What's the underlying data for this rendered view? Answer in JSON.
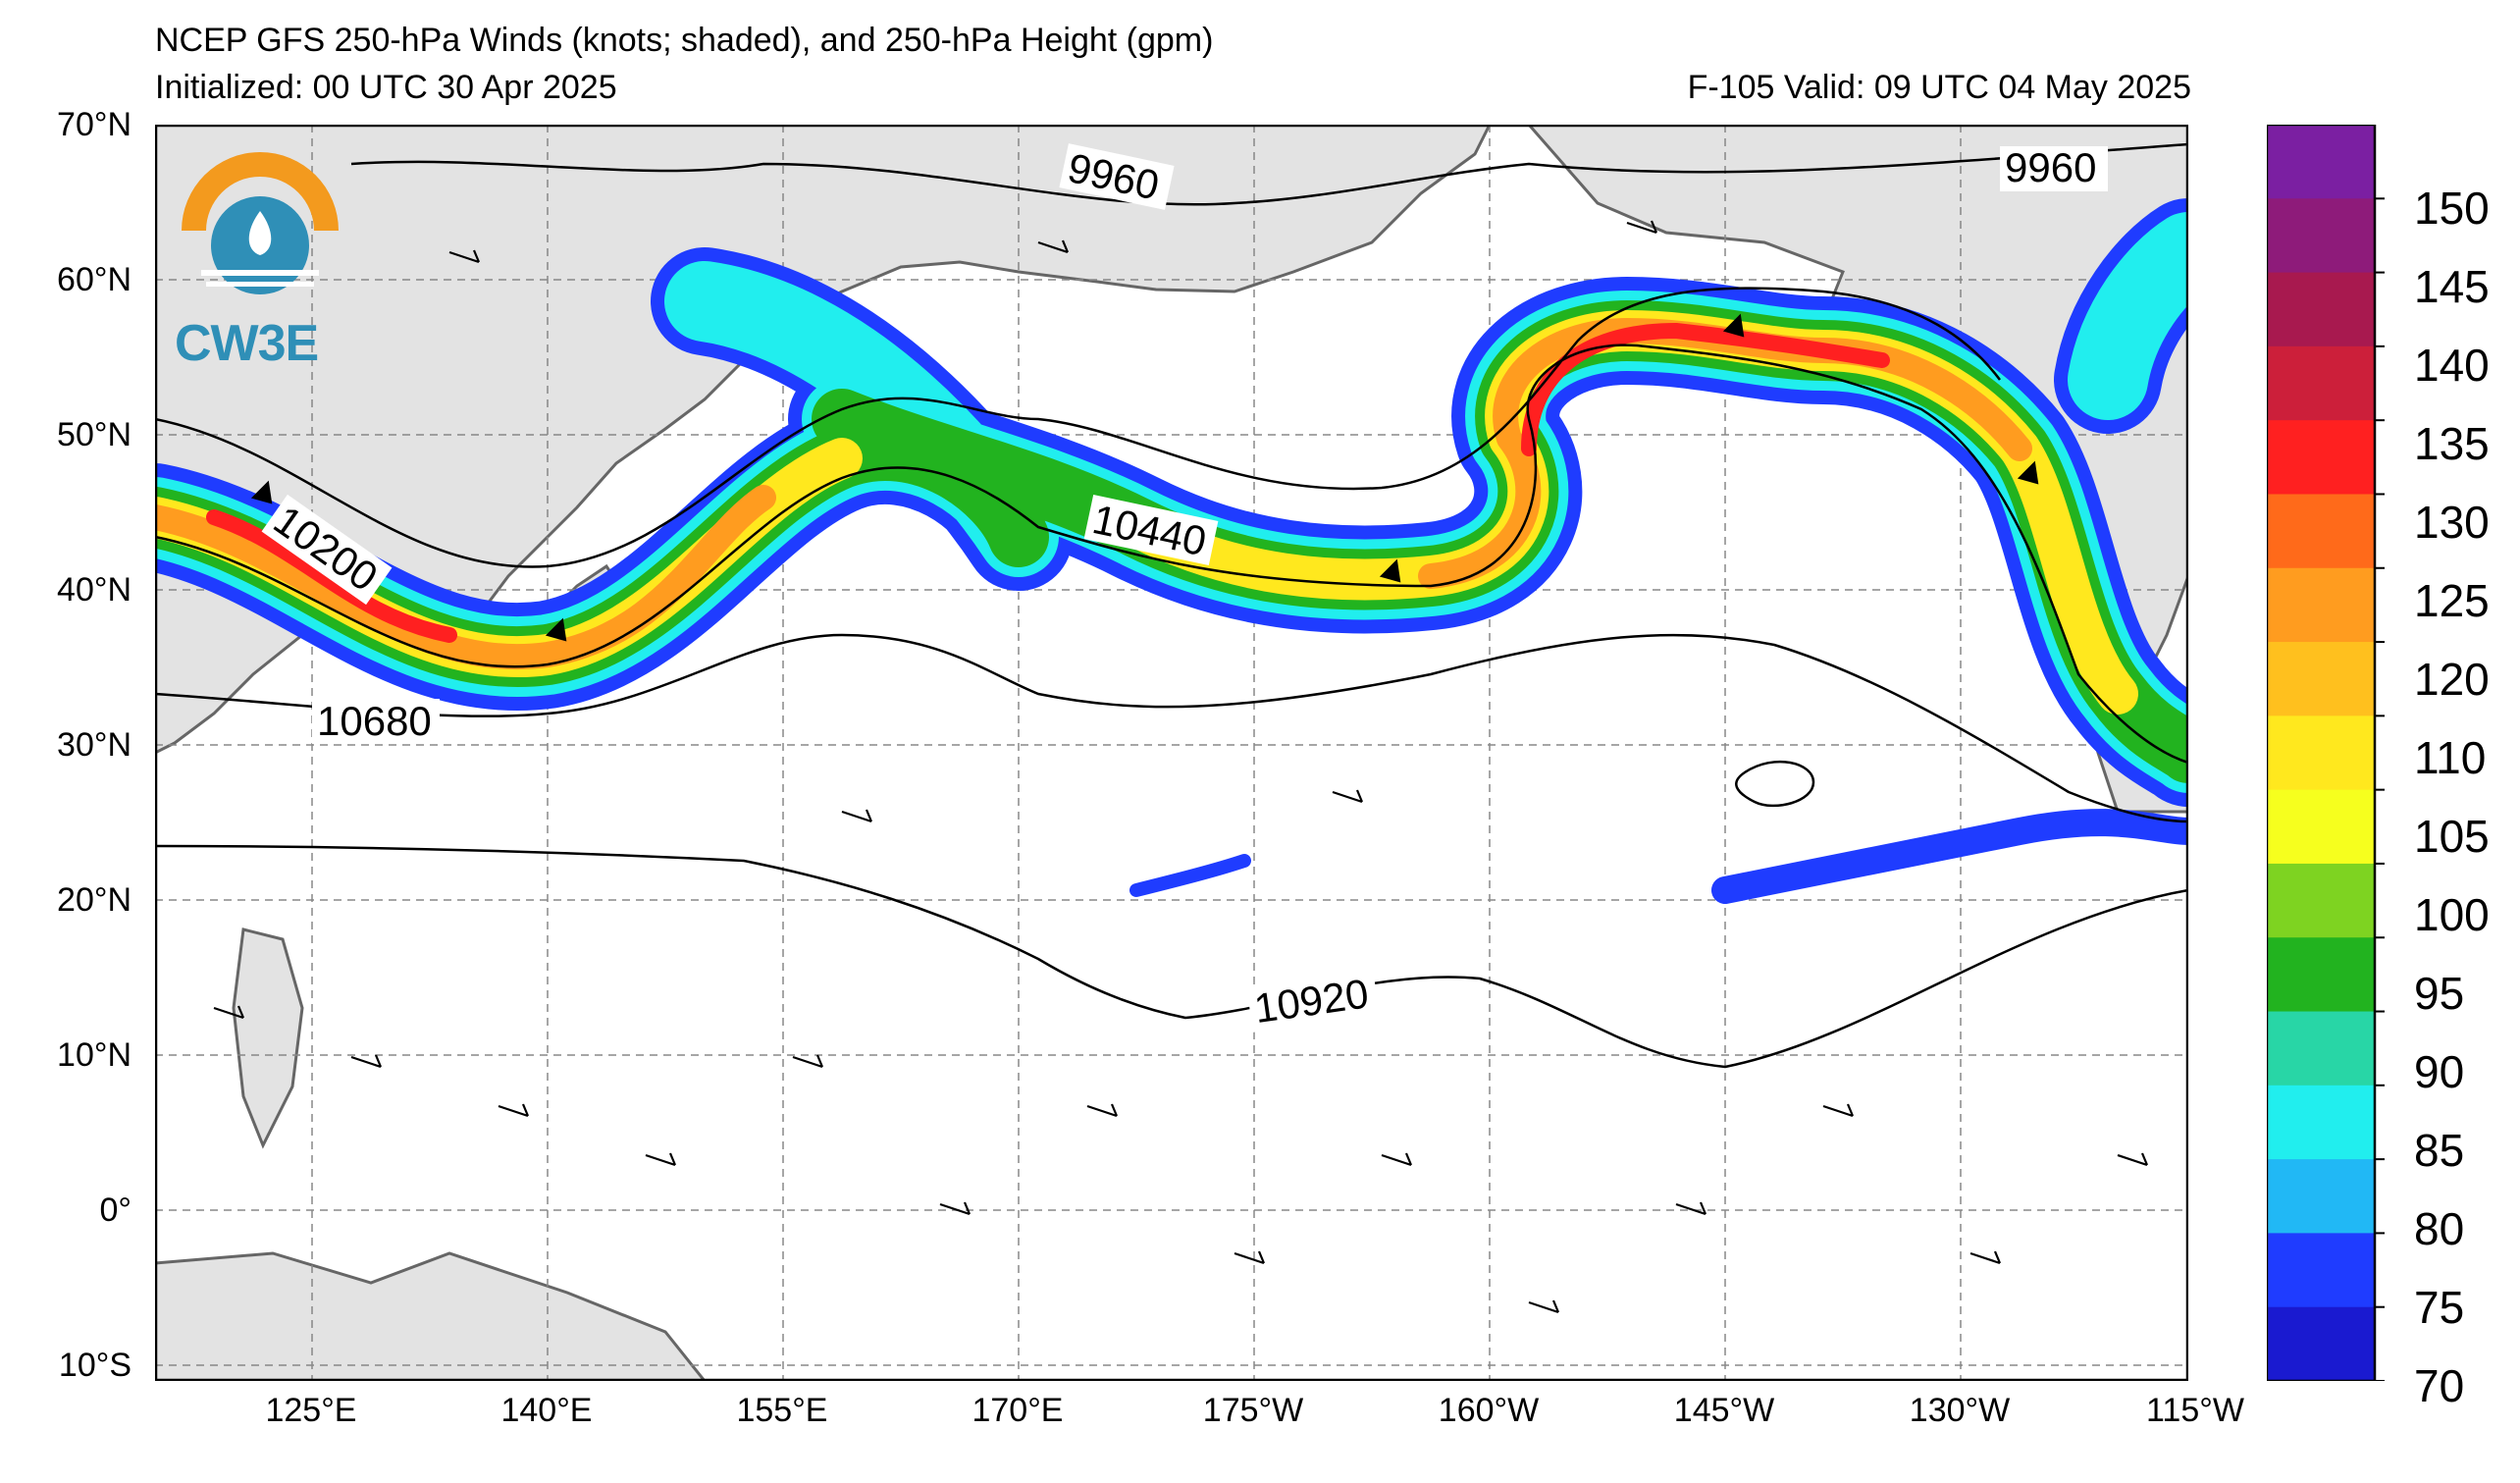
{
  "header": {
    "title": "NCEP GFS 250-hPa Winds (knots; shaded), and 250-hPa Height (gpm)",
    "initialized": "Initialized: 00 UTC 30 Apr 2025",
    "valid": "F-105  Valid: 09 UTC 04 May 2025"
  },
  "logo": {
    "text": "CW3E",
    "colors": {
      "orange": "#f39a1e",
      "blue": "#2f8fb7"
    }
  },
  "axes": {
    "lat_labels": [
      "70°N",
      "60°N",
      "50°N",
      "40°N",
      "30°N",
      "20°N",
      "10°N",
      "0°",
      "10°S"
    ],
    "lon_labels": [
      "125°E",
      "140°E",
      "155°E",
      "170°E",
      "175°W",
      "160°W",
      "145°W",
      "130°W",
      "115°W"
    ]
  },
  "contour_labels": [
    "9960",
    "9960",
    "10200",
    "10440",
    "10680",
    "10920"
  ],
  "colorbar": {
    "tick_labels": [
      "150",
      "145",
      "140",
      "135",
      "130",
      "125",
      "120",
      "110",
      "105",
      "100",
      "95",
      "90",
      "85",
      "80",
      "75",
      "70"
    ],
    "colors": [
      "#7b1fa2",
      "#8e1b7a",
      "#a8194f",
      "#cc1f3a",
      "#ff2020",
      "#ff6a1a",
      "#ff9c1f",
      "#ffc01e",
      "#ffe81e",
      "#f6ff1e",
      "#7ed321",
      "#22b31f",
      "#28d6a6",
      "#21eeee",
      "#21b8f5",
      "#1f3cff",
      "#1a1ad0"
    ]
  },
  "map": {
    "land_color": "#e3e3e3",
    "ocean_color": "#ffffff",
    "grid_style": "dashed gray"
  }
}
